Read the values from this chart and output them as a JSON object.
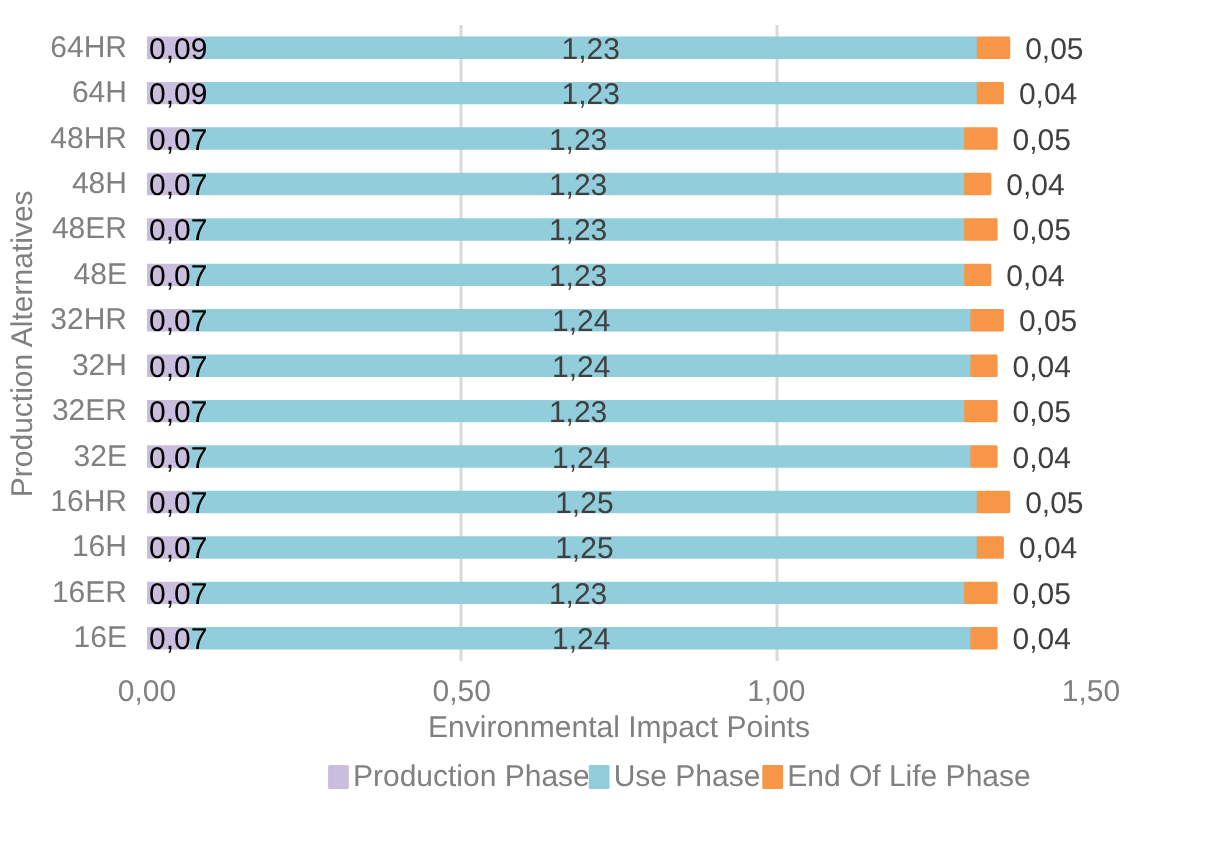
{
  "chart_data": {
    "type": "bar",
    "orientation": "horizontal",
    "stacked": true,
    "xlabel": "Environmental Impact Points",
    "ylabel": "Production Alternatives",
    "categories": [
      "64HR",
      "64H",
      "48HR",
      "48H",
      "48ER",
      "48E",
      "32HR",
      "32H",
      "32ER",
      "32E",
      "16HR",
      "16H",
      "16ER",
      "16E"
    ],
    "series": [
      {
        "name": "Production Phase",
        "color": "#c9bedd",
        "values": [
          0.09,
          0.09,
          0.07,
          0.07,
          0.07,
          0.07,
          0.07,
          0.07,
          0.07,
          0.07,
          0.07,
          0.07,
          0.07,
          0.07
        ],
        "value_labels": [
          "0,09",
          "0,09",
          "0,07",
          "0,07",
          "0,07",
          "0,07",
          "0,07",
          "0,07",
          "0,07",
          "0,07",
          "0,07",
          "0,07",
          "0,07",
          "0,07"
        ]
      },
      {
        "name": "Use Phase",
        "color": "#92cddc",
        "values": [
          1.23,
          1.23,
          1.23,
          1.23,
          1.23,
          1.23,
          1.24,
          1.24,
          1.23,
          1.24,
          1.25,
          1.25,
          1.23,
          1.24
        ],
        "value_labels": [
          "1,23",
          "1,23",
          "1,23",
          "1,23",
          "1,23",
          "1,23",
          "1,24",
          "1,24",
          "1,23",
          "1,24",
          "1,25",
          "1,25",
          "1,23",
          "1,24"
        ]
      },
      {
        "name": "End Of Life Phase",
        "color": "#f79646",
        "values": [
          0.05,
          0.04,
          0.05,
          0.04,
          0.05,
          0.04,
          0.05,
          0.04,
          0.05,
          0.04,
          0.05,
          0.04,
          0.05,
          0.04
        ],
        "value_labels": [
          "0,05",
          "0,04",
          "0,05",
          "0,04",
          "0,05",
          "0,04",
          "0,05",
          "0,04",
          "0,05",
          "0,04",
          "0,05",
          "0,04",
          "0,05",
          "0,04"
        ]
      }
    ],
    "xlim": [
      0,
      1.5
    ],
    "xticks": [
      {
        "value": 0,
        "label": "0,00"
      },
      {
        "value": 0.5,
        "label": "0,50"
      },
      {
        "value": 1,
        "label": "1,00"
      },
      {
        "value": 1.5,
        "label": "1,50"
      }
    ],
    "grid": "x",
    "legend": "bottom"
  }
}
